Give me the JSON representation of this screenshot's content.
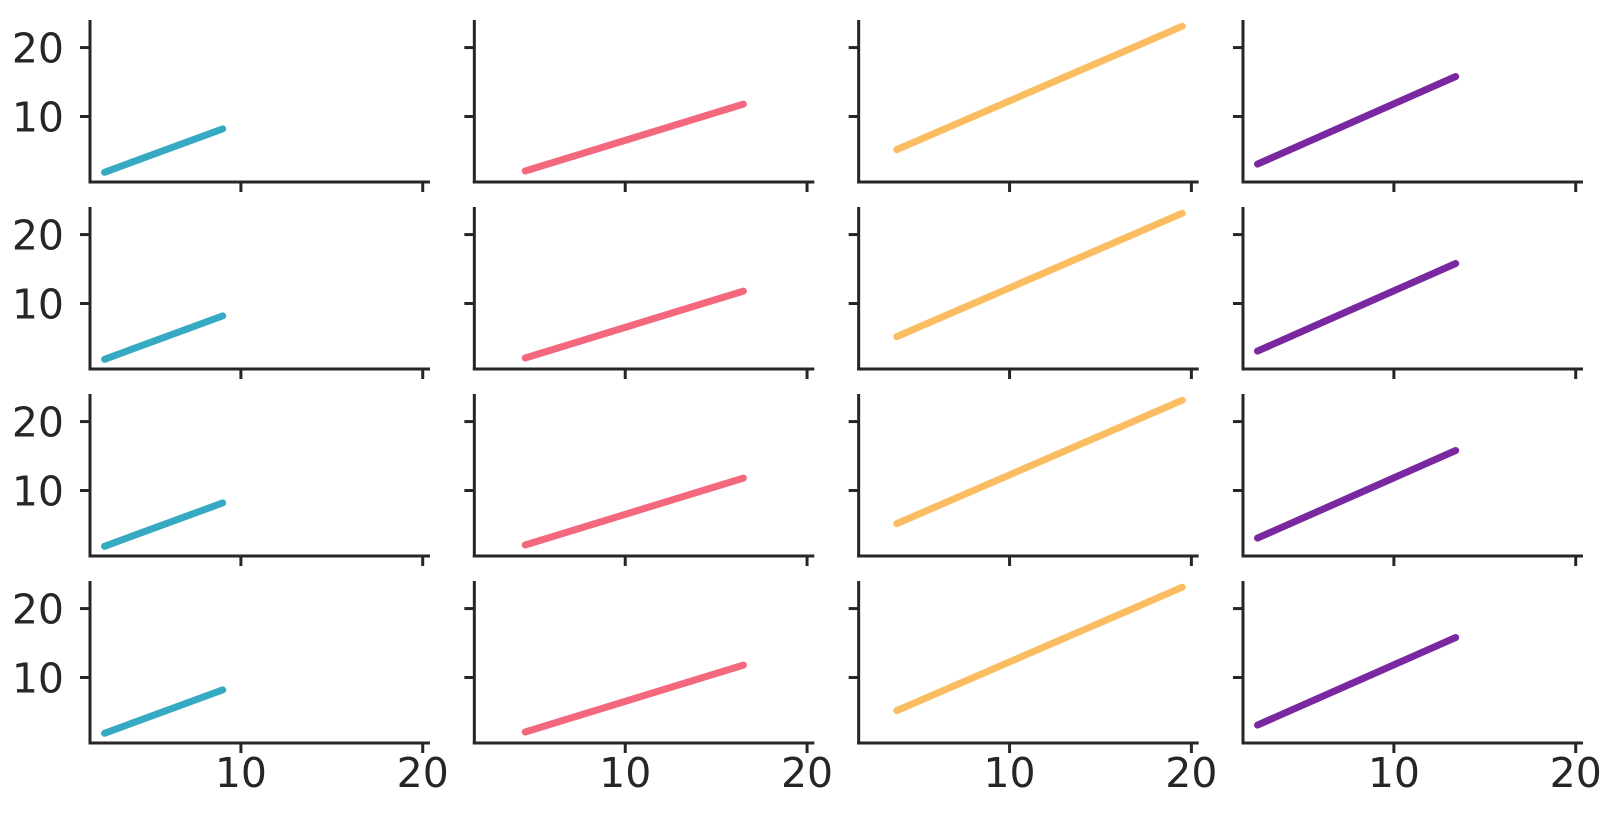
{
  "page": {
    "background_color": "#ffffff"
  },
  "chart_data": {
    "type": "line",
    "title": "",
    "layout": {
      "grid_rows": 4,
      "grid_cols": 4,
      "shared_x": true,
      "shared_y": true,
      "style": "ticks, despined (left and bottom spines only)",
      "grid": false,
      "legend": false,
      "rows_identical": true,
      "x_tick_labels_only_on_bottom_row": true,
      "y_tick_labels_only_on_first_column": true
    },
    "axes": {
      "xlim": [
        1.7,
        20.4
      ],
      "ylim": [
        0.5,
        24.0
      ],
      "xticks": [
        10,
        20
      ],
      "yticks": [
        10,
        20
      ],
      "xtick_labels": [
        "10",
        "20"
      ],
      "ytick_labels": [
        "10",
        "20"
      ],
      "xlabel": "",
      "ylabel": ""
    },
    "col_series": [
      {
        "name": "column-1-teal",
        "color": "#36a9c3",
        "points": [
          [
            2.5,
            1.9
          ],
          [
            9.0,
            8.2
          ]
        ]
      },
      {
        "name": "column-2-pink",
        "color": "#f4687e",
        "points": [
          [
            4.5,
            2.1
          ],
          [
            16.5,
            11.8
          ]
        ]
      },
      {
        "name": "column-3-orange",
        "color": "#fbbd61",
        "points": [
          [
            3.8,
            5.2
          ],
          [
            19.5,
            23.1
          ]
        ]
      },
      {
        "name": "column-4-purple",
        "color": "#7a28a0",
        "points": [
          [
            2.5,
            3.1
          ],
          [
            13.4,
            15.8
          ]
        ]
      }
    ],
    "style_colors": {
      "axis_color": "#262626",
      "tick_label_color": "#262626",
      "background": "#ffffff"
    }
  }
}
